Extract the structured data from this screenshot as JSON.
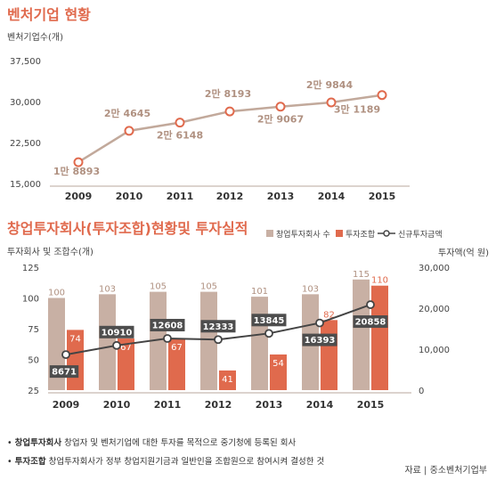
{
  "chart_data": [
    {
      "type": "line",
      "title": "벤처기업 현황",
      "ylabel": "벤처기업수(개)",
      "x": [
        "2009",
        "2010",
        "2011",
        "2012",
        "2013",
        "2014",
        "2015"
      ],
      "yticks": [
        "37,500",
        "30,000",
        "22,500",
        "15,000"
      ],
      "ylim": [
        15000,
        37500
      ],
      "series": [
        {
          "values": [
            18893,
            24645,
            26148,
            28193,
            29067,
            29844,
            31189
          ],
          "labels": [
            "1만 8893",
            "2만 4645",
            "2만 6148",
            "2만 8193",
            "2만 9067",
            "2만 9844",
            "3만 1189"
          ]
        }
      ],
      "colors": {
        "line": "#c2a99b",
        "marker": "#e06a4d"
      },
      "grid": false
    },
    {
      "type": "bar",
      "title": "창업투자회사(투자조합)현황및 투자실적",
      "ylabel": "투자회사 및 조합수(개)",
      "y2label": "투자액(억 원)",
      "categories": [
        "2009",
        "2010",
        "2011",
        "2012",
        "2013",
        "2014",
        "2015"
      ],
      "yticks": [
        "125",
        "100",
        "75",
        "50",
        "25"
      ],
      "ylim": [
        25,
        125
      ],
      "y2ticks": [
        "30,000",
        "20,000",
        "10,000",
        "0"
      ],
      "y2lim": [
        0,
        30000
      ],
      "legend": [
        "창업투자회사 수",
        "투자조합",
        "신규투자금액"
      ],
      "legend_position": "top-right",
      "series": [
        {
          "name": "창업투자회사 수",
          "values": [
            100,
            103,
            105,
            105,
            101,
            103,
            115
          ],
          "color": "#c8b0a4"
        },
        {
          "name": "투자조합",
          "values": [
            74,
            67,
            67,
            41,
            54,
            82,
            110
          ],
          "color": "#e06a4d"
        },
        {
          "name": "신규투자금액",
          "axis": "y2",
          "values": [
            8671,
            10910,
            12608,
            12333,
            13845,
            16393,
            20858
          ],
          "color": "#444444",
          "labels": [
            "8671",
            "10910",
            "12608",
            "12333",
            "13845",
            "16393",
            "20858"
          ]
        }
      ],
      "grid": false
    }
  ],
  "notes": [
    {
      "bullet": "•",
      "term": "창업투자회사",
      "text": "창업자 및 벤처기업에 대한 투자를 목적으로 중기청에 등록된 회사"
    },
    {
      "bullet": "•",
      "term": "투자조합",
      "text": "창업투자회사가 정부 창업지원기금과 일반인을 조합원으로 참여시켜 결성한 것"
    }
  ],
  "source": "자료 | 중소벤처기업부"
}
